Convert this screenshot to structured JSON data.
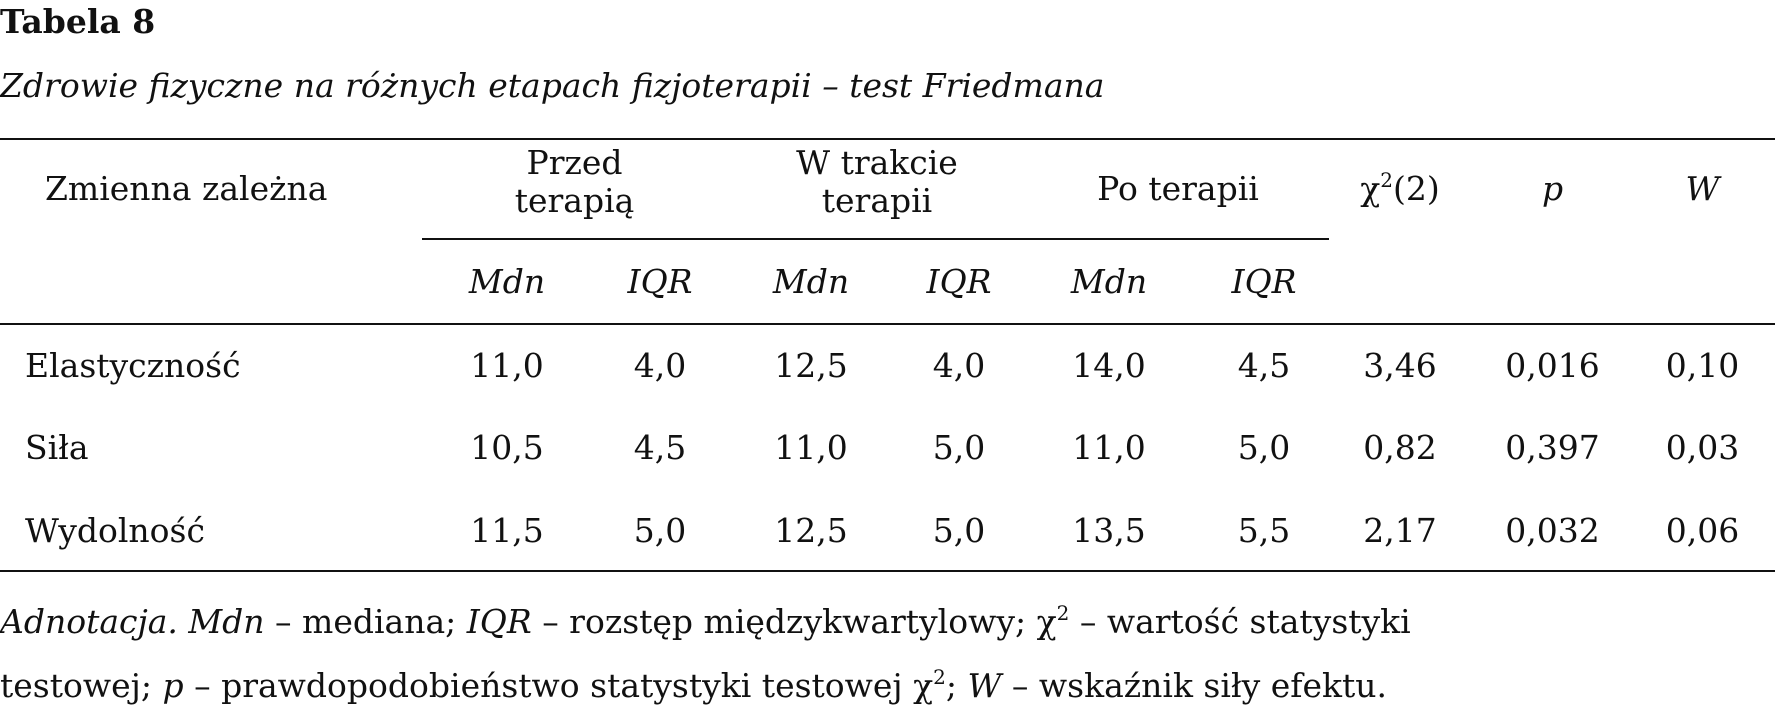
{
  "table": {
    "label": "Tabela 8",
    "caption": "Zdrowie fizyczne na różnych etapach fizjoterapii – test Friedmana",
    "header": {
      "variable": "Zmienna zależna",
      "groups": [
        {
          "line1": "Przed",
          "line2": "terapią"
        },
        {
          "line1": "W trakcie",
          "line2": "terapii"
        },
        {
          "line1": "Po terapii",
          "line2": ""
        }
      ],
      "chi_symbol": "χ",
      "chi_sup": "2",
      "chi_df": "(2)",
      "p": "p",
      "w": "W",
      "sub": [
        "Mdn",
        "IQR",
        "Mdn",
        "IQR",
        "Mdn",
        "IQR"
      ]
    },
    "rows": [
      {
        "name": "Elastyczność",
        "cells": [
          "11,0",
          "4,0",
          "12,5",
          "4,0",
          "14,0",
          "4,5",
          "3,46",
          "0,016",
          "0,10"
        ]
      },
      {
        "name": "Siła",
        "cells": [
          "10,5",
          "4,5",
          "11,0",
          "5,0",
          "11,0",
          "5,0",
          "0,82",
          "0,397",
          "0,03"
        ]
      },
      {
        "name": "Wydolność",
        "cells": [
          "11,5",
          "5,0",
          "12,5",
          "5,0",
          "13,5",
          "5,5",
          "2,17",
          "0,032",
          "0,06"
        ]
      }
    ],
    "note": {
      "label": "Adnotacja.",
      "mdn": "Mdn",
      "mdn_def": " – mediana; ",
      "iqr": "IQR",
      "iqr_def": " – rozstęp międzykwartylowy; ",
      "chi": "χ",
      "chi_sup": "2",
      "chi_def": " – wartość statystyki",
      "line2_start": "testowej; ",
      "p": "p",
      "p_def": " – prawdopodobieństwo statystyki testowej ",
      "chi2": "χ",
      "chi2_sup": "2",
      "sep": "; ",
      "w": "W",
      "w_def": " – wskaźnik siły efektu."
    }
  }
}
